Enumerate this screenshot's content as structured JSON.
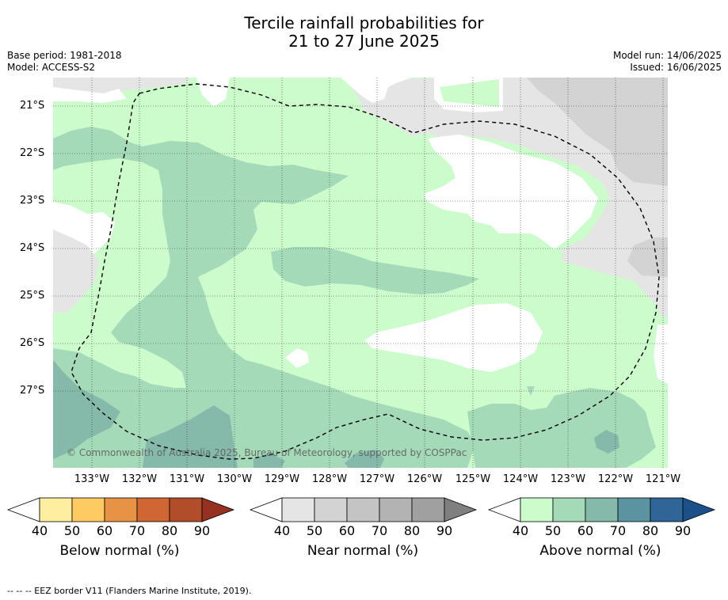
{
  "title": {
    "line1": "Tercile rainfall probabilities for",
    "line2": "21 to 27 June 2025"
  },
  "meta": {
    "base_period": "Base period: 1981-2018",
    "model": "Model: ACCESS-S2",
    "model_run": "Model run: 14/06/2025",
    "issued": "Issued: 16/06/2025"
  },
  "map": {
    "latitude_labels": [
      "21°S",
      "22°S",
      "23°S",
      "24°S",
      "25°S",
      "26°S",
      "27°S"
    ],
    "longitude_labels": [
      "133°W",
      "132°W",
      "131°W",
      "130°W",
      "129°W",
      "128°W",
      "127°W",
      "126°W",
      "125°W",
      "124°W",
      "123°W",
      "122°W",
      "121°W"
    ],
    "copyright": "© Commonwealth of Australia 2025, Bureau of Meteorology, supported by COSPPac",
    "eez_border_style": "dashed"
  },
  "colorbars": [
    {
      "label": "Below normal (%)",
      "ticks": [
        "40",
        "50",
        "60",
        "70",
        "80",
        "90"
      ],
      "colors": [
        "#ffffff",
        "#fdeea0",
        "#fdcb62",
        "#e69345",
        "#cf6634",
        "#b14d29",
        "#963020"
      ]
    },
    {
      "label": "Near normal (%)",
      "ticks": [
        "40",
        "50",
        "60",
        "70",
        "80",
        "90"
      ],
      "colors": [
        "#ffffff",
        "#e5e5e5",
        "#d3d3d3",
        "#c4c4c4",
        "#b3b3b3",
        "#a0a0a0",
        "#7f7f7f"
      ]
    },
    {
      "label": "Above normal (%)",
      "ticks": [
        "40",
        "50",
        "60",
        "70",
        "80",
        "90"
      ],
      "colors": [
        "#ffffff",
        "#ccfccc",
        "#a4dab8",
        "#85b9aa",
        "#5b94a0",
        "#2f6597",
        "#1a4f8a"
      ]
    }
  ],
  "footnote": "--  --  -- EEZ border V11 (Flanders Marine Institute, 2019)."
}
